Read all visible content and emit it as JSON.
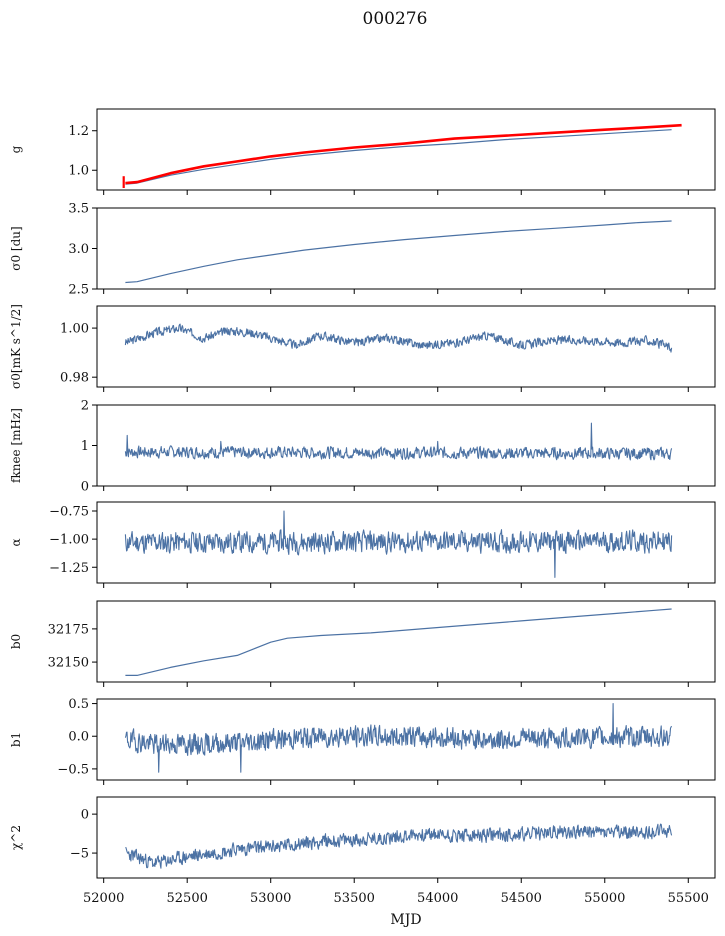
{
  "figure": {
    "title": "000276",
    "xlabel": "MJD",
    "xticks": [
      52000,
      52500,
      53000,
      53500,
      54000,
      54500,
      55000,
      55500
    ],
    "xlim": [
      51960,
      55660
    ]
  },
  "chart_data": [
    {
      "type": "line",
      "ylabel": "g",
      "ylim": [
        0.9,
        1.31
      ],
      "yticks": [
        1.0,
        1.2
      ],
      "x_start": 52130,
      "x_end": 55400,
      "series": [
        {
          "color": "#4c72a4",
          "width": 1.2,
          "x": [
            52130,
            52200,
            52400,
            52600,
            52800,
            53000,
            53200,
            53500,
            53800,
            54100,
            54400,
            54700,
            55000,
            55200,
            55400
          ],
          "y": [
            0.93,
            0.935,
            0.975,
            1.005,
            1.03,
            1.055,
            1.075,
            1.1,
            1.12,
            1.135,
            1.155,
            1.17,
            1.185,
            1.195,
            1.205
          ]
        },
        {
          "color": "#ff0000",
          "width": 2.6,
          "x": [
            52130,
            52200,
            52400,
            52600,
            52800,
            53000,
            53200,
            53500,
            53800,
            54100,
            54400,
            54700,
            55000,
            55200,
            55400,
            55460
          ],
          "y": [
            0.935,
            0.94,
            0.985,
            1.02,
            1.045,
            1.07,
            1.09,
            1.115,
            1.135,
            1.16,
            1.175,
            1.19,
            1.205,
            1.215,
            1.225,
            1.228
          ]
        },
        {
          "color": "#ff0000",
          "width": 2.2,
          "x": [
            52120,
            52120
          ],
          "y": [
            0.91,
            0.97
          ]
        }
      ]
    },
    {
      "type": "line",
      "ylabel": "σ0 [du]",
      "ylim": [
        2.5,
        3.5
      ],
      "yticks": [
        2.5,
        3.0,
        3.5
      ],
      "series": [
        {
          "color": "#4c72a4",
          "width": 1.2,
          "x": [
            52130,
            52200,
            52400,
            52600,
            52800,
            53000,
            53200,
            53500,
            53800,
            54100,
            54400,
            54700,
            55000,
            55200,
            55400
          ],
          "y": [
            2.58,
            2.59,
            2.69,
            2.78,
            2.86,
            2.92,
            2.98,
            3.05,
            3.11,
            3.16,
            3.21,
            3.25,
            3.29,
            3.32,
            3.34
          ]
        }
      ]
    },
    {
      "type": "line",
      "ylabel": "σ0[mK s^1/2]",
      "ylim": [
        0.976,
        1.009
      ],
      "yticks": [
        0.98,
        1.0
      ],
      "noise": {
        "seed": 3,
        "amp": 0.0022,
        "n": 1000,
        "base_x": [
          52130,
          52300,
          52450,
          52600,
          52750,
          52900,
          53000,
          53150,
          53300,
          53500,
          53700,
          53900,
          54100,
          54300,
          54500,
          54700,
          54900,
          55100,
          55250,
          55400
        ],
        "base_y": [
          0.994,
          0.998,
          1.0,
          0.996,
          0.999,
          0.998,
          0.996,
          0.993,
          0.997,
          0.994,
          0.996,
          0.993,
          0.994,
          0.997,
          0.993,
          0.995,
          0.995,
          0.994,
          0.995,
          0.992
        ]
      },
      "series": [
        {
          "color": "#4c72a4",
          "width": 1.1
        }
      ]
    },
    {
      "type": "line",
      "ylabel": "fknee [mHz]",
      "ylim": [
        0,
        2
      ],
      "yticks": [
        0,
        1,
        2
      ],
      "noise": {
        "seed": 7,
        "amp": 0.18,
        "n": 900,
        "base_x": [
          52130,
          55400
        ],
        "base_y": [
          0.84,
          0.8
        ],
        "spikes": [
          [
            52140,
            1.25
          ],
          [
            52700,
            1.1
          ],
          [
            54920,
            1.55
          ],
          [
            54000,
            1.1
          ]
        ]
      },
      "series": [
        {
          "color": "#4c72a4",
          "width": 1.1
        }
      ]
    },
    {
      "type": "line",
      "ylabel": "α",
      "ylim": [
        -1.39,
        -0.67
      ],
      "yticks": [
        -1.25,
        -1.0,
        -0.75
      ],
      "noise": {
        "seed": 11,
        "amp": 0.12,
        "n": 900,
        "base_x": [
          52130,
          55400
        ],
        "base_y": [
          -1.03,
          -1.02
        ],
        "spikes": [
          [
            53080,
            -0.75
          ],
          [
            54700,
            -1.34
          ]
        ]
      },
      "series": [
        {
          "color": "#4c72a4",
          "width": 1.1
        }
      ]
    },
    {
      "type": "line",
      "ylabel": "b0",
      "ylim": [
        32135,
        32196
      ],
      "yticks": [
        32150,
        32175
      ],
      "series": [
        {
          "color": "#4c72a4",
          "width": 1.2,
          "x": [
            52130,
            52200,
            52400,
            52600,
            52800,
            52900,
            53000,
            53100,
            53300,
            53600,
            53900,
            54200,
            54500,
            54800,
            55100,
            55300,
            55400
          ],
          "y": [
            32140,
            32140,
            32146,
            32151,
            32155,
            32160,
            32165,
            32168,
            32170,
            32172,
            32175,
            32178,
            32181,
            32184,
            32187,
            32189,
            32190
          ]
        }
      ]
    },
    {
      "type": "line",
      "ylabel": "b1",
      "ylim": [
        -0.67,
        0.57
      ],
      "yticks": [
        -0.5,
        0.0,
        0.5
      ],
      "noise": {
        "seed": 19,
        "amp": 0.2,
        "n": 1000,
        "base_x": [
          52130,
          52300,
          52600,
          52900,
          53300,
          53800,
          54300,
          54800,
          55400
        ],
        "base_y": [
          -0.05,
          -0.12,
          -0.12,
          -0.08,
          0.0,
          0.0,
          -0.05,
          -0.02,
          0.0
        ],
        "spikes": [
          [
            55050,
            0.5
          ],
          [
            52330,
            -0.55
          ],
          [
            52820,
            -0.55
          ]
        ]
      },
      "series": [
        {
          "color": "#4c72a4",
          "width": 1.1
        }
      ]
    },
    {
      "type": "line",
      "ylabel": "χ^2",
      "ylim": [
        -8.2,
        2.2
      ],
      "yticks": [
        -5,
        0
      ],
      "noise": {
        "seed": 23,
        "amp": 1.1,
        "n": 1000,
        "base_x": [
          52130,
          52300,
          52500,
          52800,
          53000,
          53300,
          53600,
          53900,
          54200,
          54500,
          54800,
          55100,
          55400
        ],
        "base_y": [
          -5.0,
          -6.3,
          -5.5,
          -4.5,
          -4.2,
          -3.5,
          -3.2,
          -2.6,
          -2.8,
          -2.6,
          -2.2,
          -2.4,
          -2.2
        ]
      },
      "series": [
        {
          "color": "#4c72a4",
          "width": 1.1
        }
      ]
    }
  ]
}
